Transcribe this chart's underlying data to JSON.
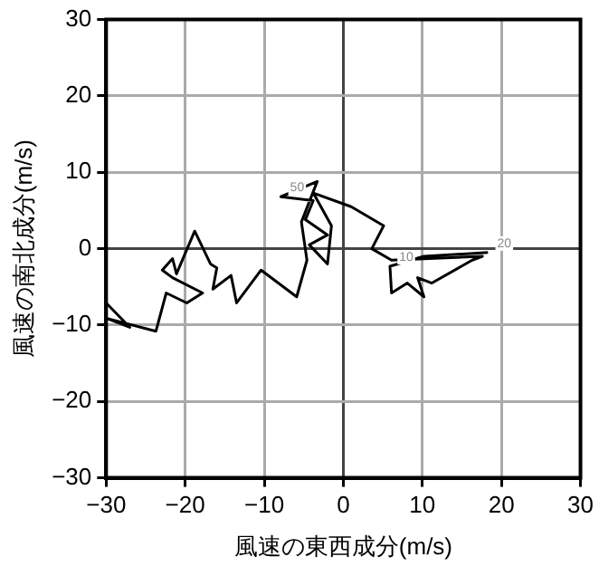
{
  "chart_data": {
    "type": "line",
    "xlabel": "風速の東西成分(m/s)",
    "ylabel": "風速の南北成分(m/s)",
    "x": [
      -30,
      -27,
      -30,
      -23.7,
      -22.4,
      -19.8,
      -17.8,
      -21.6,
      -22.9,
      -21.6,
      -21.1,
      -18.8,
      -16.8,
      -16,
      -16.5,
      -14.2,
      -13.5,
      -10.4,
      -5.9,
      -4.6,
      -5.3,
      -3.3,
      -7.9,
      -3.8,
      -4.8,
      -2,
      -4.3,
      -2,
      -1.5,
      -3.8,
      1,
      5.1,
      3.6,
      6.1,
      17.6,
      16.3,
      11.2,
      9.4,
      10.2,
      8.1,
      6.1,
      5.9,
      10.2,
      18.3
    ],
    "series": [
      {
        "color": "#000000",
        "values": [
          -7.1,
          -10.3,
          -9.1,
          -10.8,
          -5.8,
          -7.1,
          -5.8,
          -3.8,
          -2.8,
          -1.3,
          -3.3,
          2.3,
          -2,
          -2.5,
          -5.3,
          -3.5,
          -7.1,
          -2.8,
          -6.3,
          -1.5,
          3.5,
          8.8,
          6.8,
          6.3,
          3.8,
          1.8,
          0.5,
          -2,
          3,
          7.3,
          5.5,
          3,
          0,
          -1.5,
          -1,
          -1.5,
          -4.5,
          -3.8,
          -6.3,
          -4.5,
          -5.8,
          -2.3,
          -1,
          -0.5
        ]
      }
    ],
    "xlim": [
      -30,
      30
    ],
    "ylim": [
      -30,
      30
    ],
    "xticks": [
      {
        "value": -30,
        "label": "−30"
      },
      {
        "value": -20,
        "label": "−20"
      },
      {
        "value": -10,
        "label": "−10"
      },
      0,
      10,
      20,
      30
    ],
    "yticks": [
      {
        "value": -30,
        "label": "−30"
      },
      {
        "value": -20,
        "label": "−20"
      },
      {
        "value": -10,
        "label": "−10"
      },
      0,
      10,
      20,
      30
    ],
    "grid": true,
    "legend": false,
    "marker": "none",
    "line_style": "solid",
    "annotations": [
      {
        "text": "50",
        "x": -7.9,
        "y": 6.8
      },
      {
        "text": "10",
        "x": 5.9,
        "y": -2.3
      },
      {
        "text": "20",
        "x": 18.3,
        "y": -0.5
      }
    ]
  }
}
